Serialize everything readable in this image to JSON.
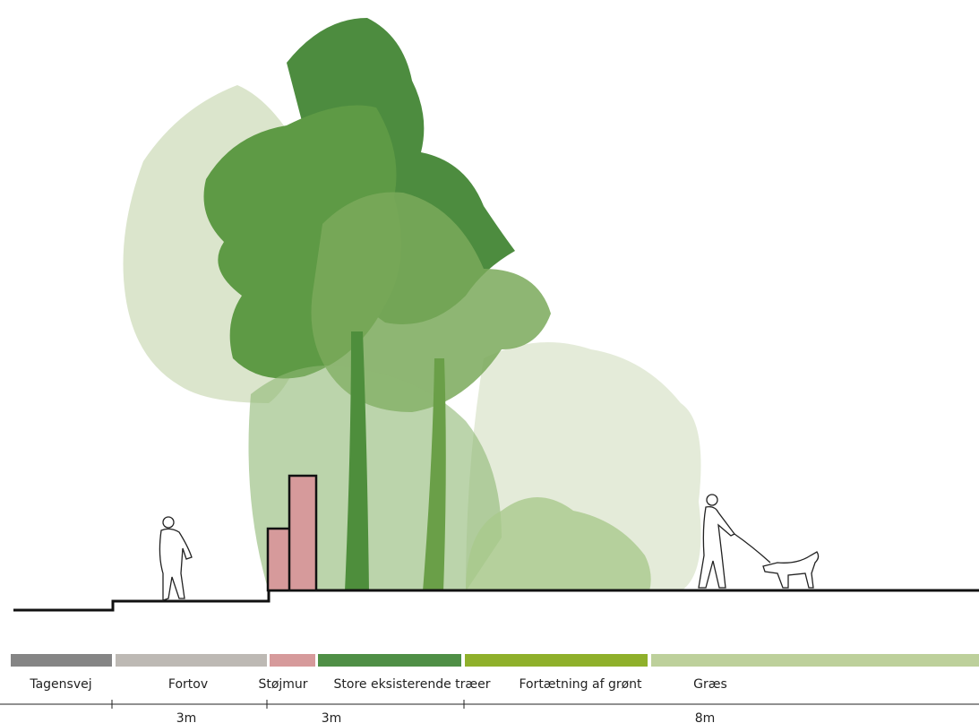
{
  "zones": [
    {
      "label": "Tagensvej",
      "color": "#858585"
    },
    {
      "label": "Fortov",
      "color": "#bdb9b4"
    },
    {
      "label": "Støjmur",
      "color": "#d69a9b"
    },
    {
      "label": "Store eksisterende træer",
      "color": "#4f8f46"
    },
    {
      "label": "Fortætning af grønt",
      "color": "#8fb02b"
    },
    {
      "label": "Græs",
      "color": "#bdd09b"
    }
  ],
  "dimensions": [
    "3m",
    "3m",
    "8m"
  ]
}
